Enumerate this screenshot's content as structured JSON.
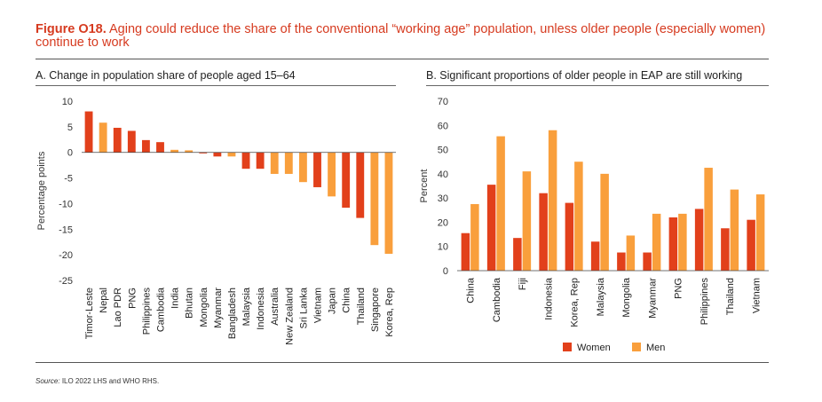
{
  "figure": {
    "label": "Figure O18.",
    "title": "Aging could reduce the share of the conventional “working age” population, unless older people (especially women) continue to work",
    "source_label": "Source:",
    "source_text": "ILO 2022 LHS and WHO RHS."
  },
  "colors": {
    "red": "#e2401b",
    "orange": "#f99f3c",
    "brand": "#d63a1f"
  },
  "chart_data": [
    {
      "panel": "A",
      "type": "bar",
      "title": "A. Change in population share of people aged 15–64",
      "ylabel": "Percentage points",
      "xlabel": "",
      "ylim": [
        -25,
        10
      ],
      "yticks": [
        10,
        5,
        0,
        -5,
        -10,
        -15,
        -20,
        -25
      ],
      "grid": false,
      "categories": [
        "Timor-Leste",
        "Nepal",
        "Lao PDR",
        "PNG",
        "Philippines",
        "Cambodia",
        "India",
        "Bhutan",
        "Mongolia",
        "Myanmar",
        "Bangladesh",
        "Malaysia",
        "Indonesia",
        "Australia",
        "New Zealand",
        "Sri Lanka",
        "Vietnam",
        "Japan",
        "China",
        "Thailand",
        "Singapore",
        "Korea, Rep"
      ],
      "values": [
        8.0,
        5.8,
        4.8,
        4.2,
        2.4,
        2.0,
        0.5,
        0.4,
        -0.2,
        -0.8,
        -0.8,
        -3.2,
        -3.2,
        -4.2,
        -4.2,
        -5.8,
        -6.8,
        -8.6,
        -10.8,
        -12.8,
        -18.1,
        -19.8
      ],
      "bar_colors": [
        "red",
        "orange",
        "red",
        "red",
        "red",
        "red",
        "orange",
        "orange",
        "red",
        "red",
        "orange",
        "red",
        "red",
        "orange",
        "orange",
        "orange",
        "red",
        "orange",
        "red",
        "red",
        "orange",
        "orange"
      ]
    },
    {
      "panel": "B",
      "type": "bar",
      "title": "B. Significant proportions of older people in EAP are still working",
      "ylabel": "Percent",
      "xlabel": "",
      "ylim": [
        0,
        70
      ],
      "yticks": [
        70,
        60,
        50,
        40,
        30,
        20,
        10,
        0
      ],
      "grid": false,
      "legend_position": "bottom",
      "categories": [
        "China",
        "Cambodia",
        "Fiji",
        "Indonesia",
        "Korea, Rep",
        "Malaysia",
        "Mongolia",
        "Myanmar",
        "PNG",
        "Philippines",
        "Thailand",
        "Vietnam"
      ],
      "series": [
        {
          "name": "Women",
          "color": "red",
          "values": [
            15.5,
            35.5,
            13.5,
            32,
            28,
            12,
            7.5,
            7.5,
            22,
            25.5,
            17.5,
            21
          ]
        },
        {
          "name": "Men",
          "color": "orange",
          "values": [
            27.5,
            55.5,
            41,
            58,
            45,
            40,
            14.5,
            23.5,
            23.5,
            42.5,
            33.5,
            31.5
          ]
        }
      ]
    }
  ]
}
